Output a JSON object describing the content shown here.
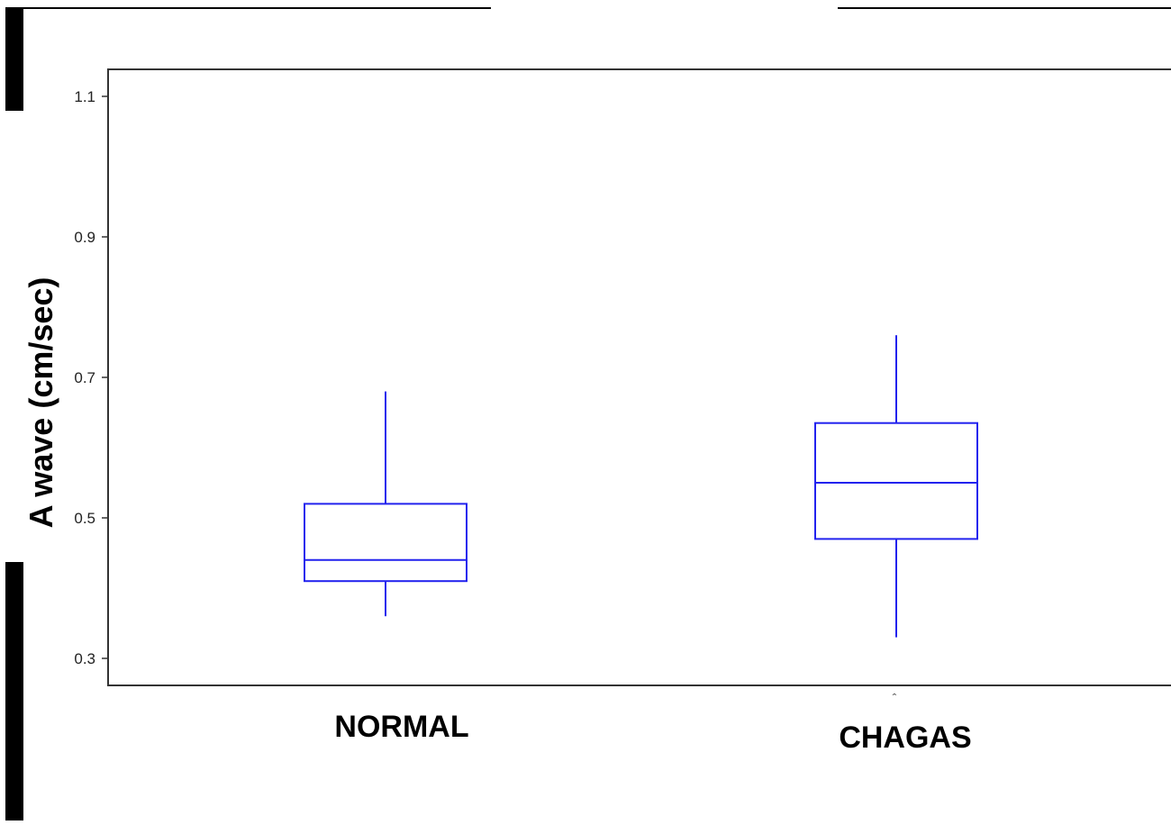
{
  "chart_data": {
    "type": "box",
    "title": "",
    "xlabel": "",
    "ylabel": "A wave (cm/sec)",
    "ylim": [
      0.27,
      1.14
    ],
    "yticks": [
      "0.3",
      "0.5",
      "0.7",
      "0.9",
      "1.1"
    ],
    "grid": false,
    "box_color": "#2222ee",
    "categories": [
      "NORMAL",
      "CHAGAS"
    ],
    "boxes": [
      {
        "category": "NORMAL",
        "whisker_low": 0.36,
        "q1": 0.41,
        "median": 0.44,
        "q3": 0.52,
        "whisker_high": 0.68
      },
      {
        "category": "CHAGAS",
        "whisker_low": 0.33,
        "q1": 0.47,
        "median": 0.55,
        "q3": 0.635,
        "whisker_high": 0.76
      }
    ]
  }
}
